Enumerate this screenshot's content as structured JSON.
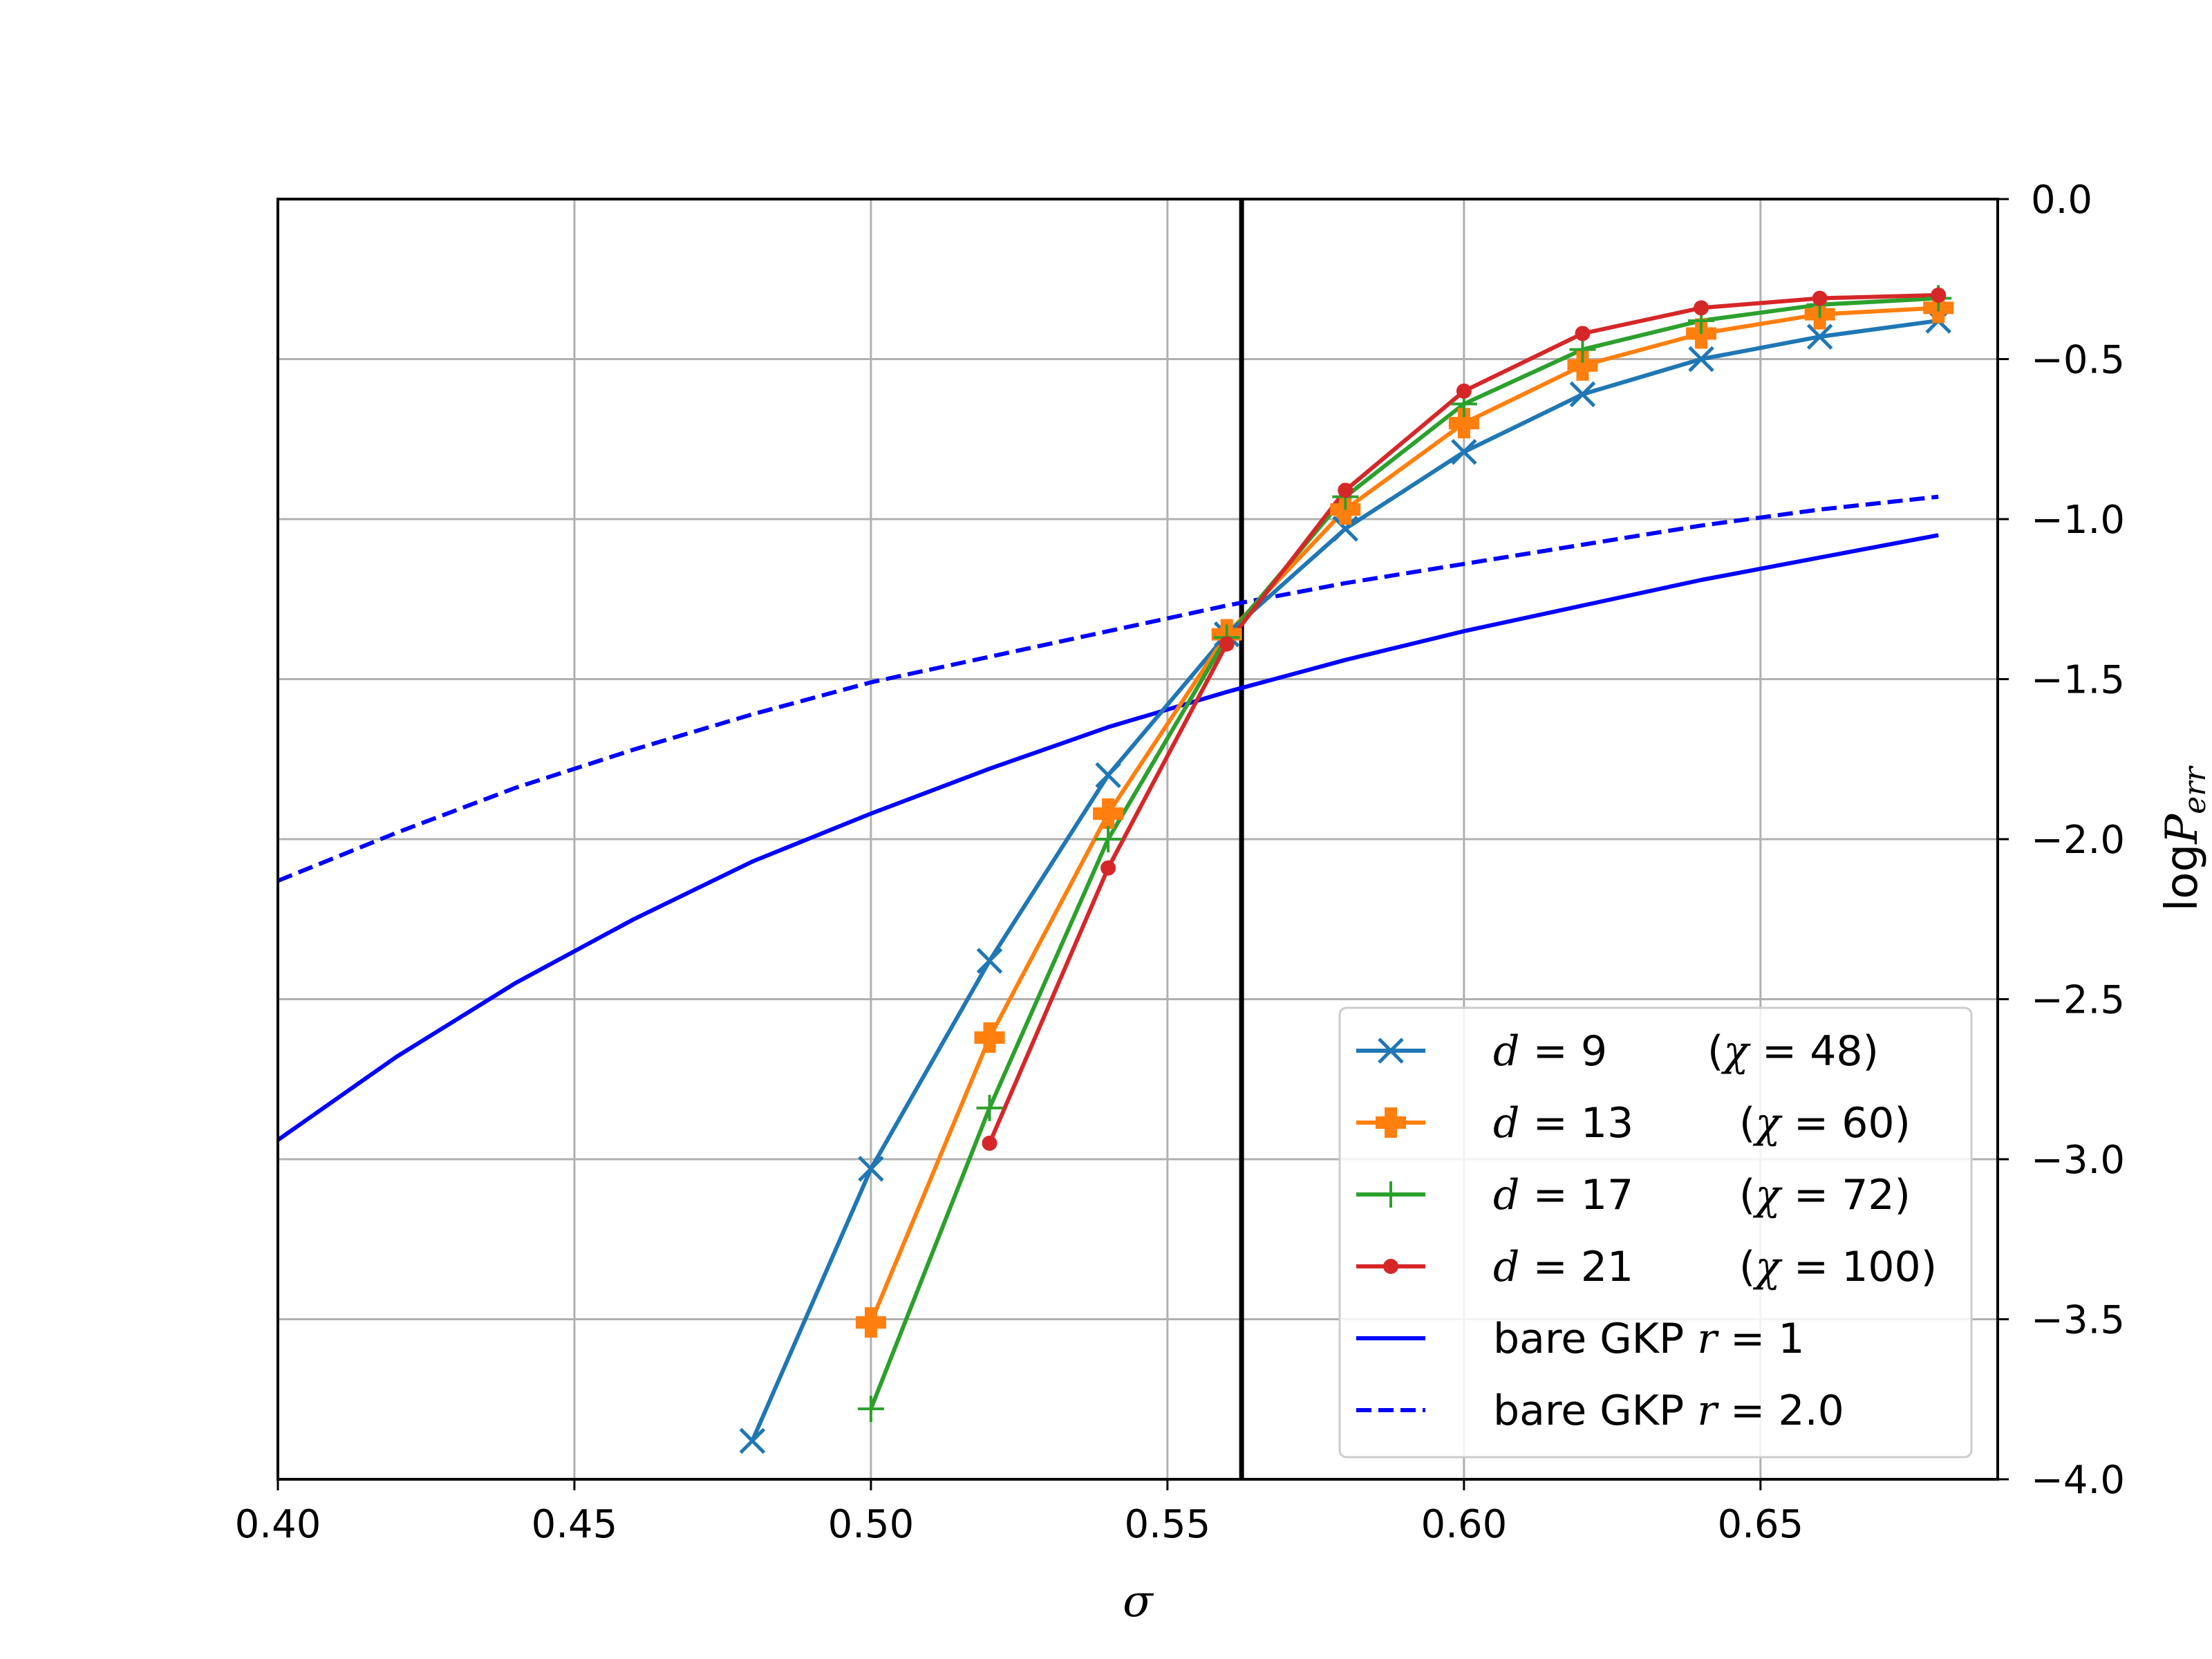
{
  "chart_data": {
    "type": "line",
    "xlabel": "σ",
    "ylabel": {
      "prefix": "log",
      "var": "P",
      "sub": "err"
    },
    "xlim": [
      0.4,
      0.69
    ],
    "ylim": [
      -4.0,
      0.0
    ],
    "xticks": [
      "0.40",
      "0.45",
      "0.50",
      "0.55",
      "0.60",
      "0.65"
    ],
    "yticks": [
      "0.0",
      "−0.5",
      "−1.0",
      "−1.5",
      "−2.0",
      "−2.5",
      "−3.0",
      "−3.5",
      "−4.0"
    ],
    "yaxis_side": "right",
    "grid": true,
    "legend_position": "lower-right",
    "vertical_line": {
      "x": 0.5625,
      "color": "#000000"
    },
    "series": [
      {
        "name": "d = 9     (χ = 48)",
        "legend": {
          "var": "d",
          "dval": "9",
          "chi": "48"
        },
        "color": "#1f77b4",
        "marker": "x",
        "dash": "solid",
        "x": [
          0.48,
          0.5,
          0.52,
          0.54,
          0.56,
          0.58,
          0.6,
          0.62,
          0.64,
          0.66,
          0.68
        ],
        "y": [
          -3.88,
          -3.03,
          -2.38,
          -1.8,
          -1.36,
          -1.03,
          -0.79,
          -0.61,
          -0.5,
          -0.43,
          -0.38
        ]
      },
      {
        "name": "d = 13     (χ = 60)",
        "legend": {
          "var": "d",
          "dval": "13",
          "chi": "60"
        },
        "color": "#ff7f0e",
        "marker": "P",
        "dash": "solid",
        "x": [
          0.5,
          0.52,
          0.54,
          0.56,
          0.58,
          0.6,
          0.62,
          0.64,
          0.66,
          0.68
        ],
        "y": [
          -3.51,
          -2.62,
          -1.92,
          -1.36,
          -0.97,
          -0.7,
          -0.52,
          -0.42,
          -0.36,
          -0.34
        ]
      },
      {
        "name": "d = 17     (χ = 72)",
        "legend": {
          "var": "d",
          "dval": "17",
          "chi": "72"
        },
        "color": "#2ca02c",
        "marker": "+",
        "dash": "solid",
        "x": [
          0.5,
          0.52,
          0.54,
          0.56,
          0.58,
          0.6,
          0.62,
          0.64,
          0.66,
          0.68
        ],
        "y": [
          -3.78,
          -2.84,
          -2.0,
          -1.37,
          -0.93,
          -0.64,
          -0.47,
          -0.38,
          -0.33,
          -0.31
        ]
      },
      {
        "name": "d = 21     (χ = 100)",
        "legend": {
          "var": "d",
          "dval": "21",
          "chi": "100"
        },
        "color": "#d62728",
        "marker": "o",
        "dash": "solid",
        "x": [
          0.52,
          0.54,
          0.56,
          0.58,
          0.6,
          0.62,
          0.64,
          0.66,
          0.68
        ],
        "y": [
          -2.95,
          -2.09,
          -1.39,
          -0.91,
          -0.6,
          -0.42,
          -0.34,
          -0.31,
          -0.3
        ]
      },
      {
        "name": "bare GKP r = 1",
        "legend": {
          "prefix": "bare GKP ",
          "var": "r",
          "val": "1"
        },
        "color": "#0000ff",
        "marker": "none",
        "dash": "solid",
        "x": [
          0.4,
          0.42,
          0.44,
          0.46,
          0.48,
          0.5,
          0.52,
          0.54,
          0.56,
          0.58,
          0.6,
          0.62,
          0.64,
          0.66,
          0.68
        ],
        "y": [
          -2.94,
          -2.68,
          -2.45,
          -2.25,
          -2.07,
          -1.92,
          -1.78,
          -1.65,
          -1.54,
          -1.44,
          -1.35,
          -1.27,
          -1.19,
          -1.12,
          -1.05
        ]
      },
      {
        "name": "bare GKP r = 2.0",
        "legend": {
          "prefix": "bare GKP ",
          "var": "r",
          "val": "2.0"
        },
        "color": "#0000ff",
        "marker": "none",
        "dash": "dashed",
        "x": [
          0.4,
          0.42,
          0.44,
          0.46,
          0.48,
          0.5,
          0.52,
          0.54,
          0.56,
          0.58,
          0.6,
          0.62,
          0.64,
          0.66,
          0.68
        ],
        "y": [
          -2.13,
          -1.98,
          -1.84,
          -1.72,
          -1.61,
          -1.51,
          -1.43,
          -1.35,
          -1.27,
          -1.2,
          -1.14,
          -1.08,
          -1.02,
          -0.97,
          -0.93
        ]
      }
    ]
  }
}
